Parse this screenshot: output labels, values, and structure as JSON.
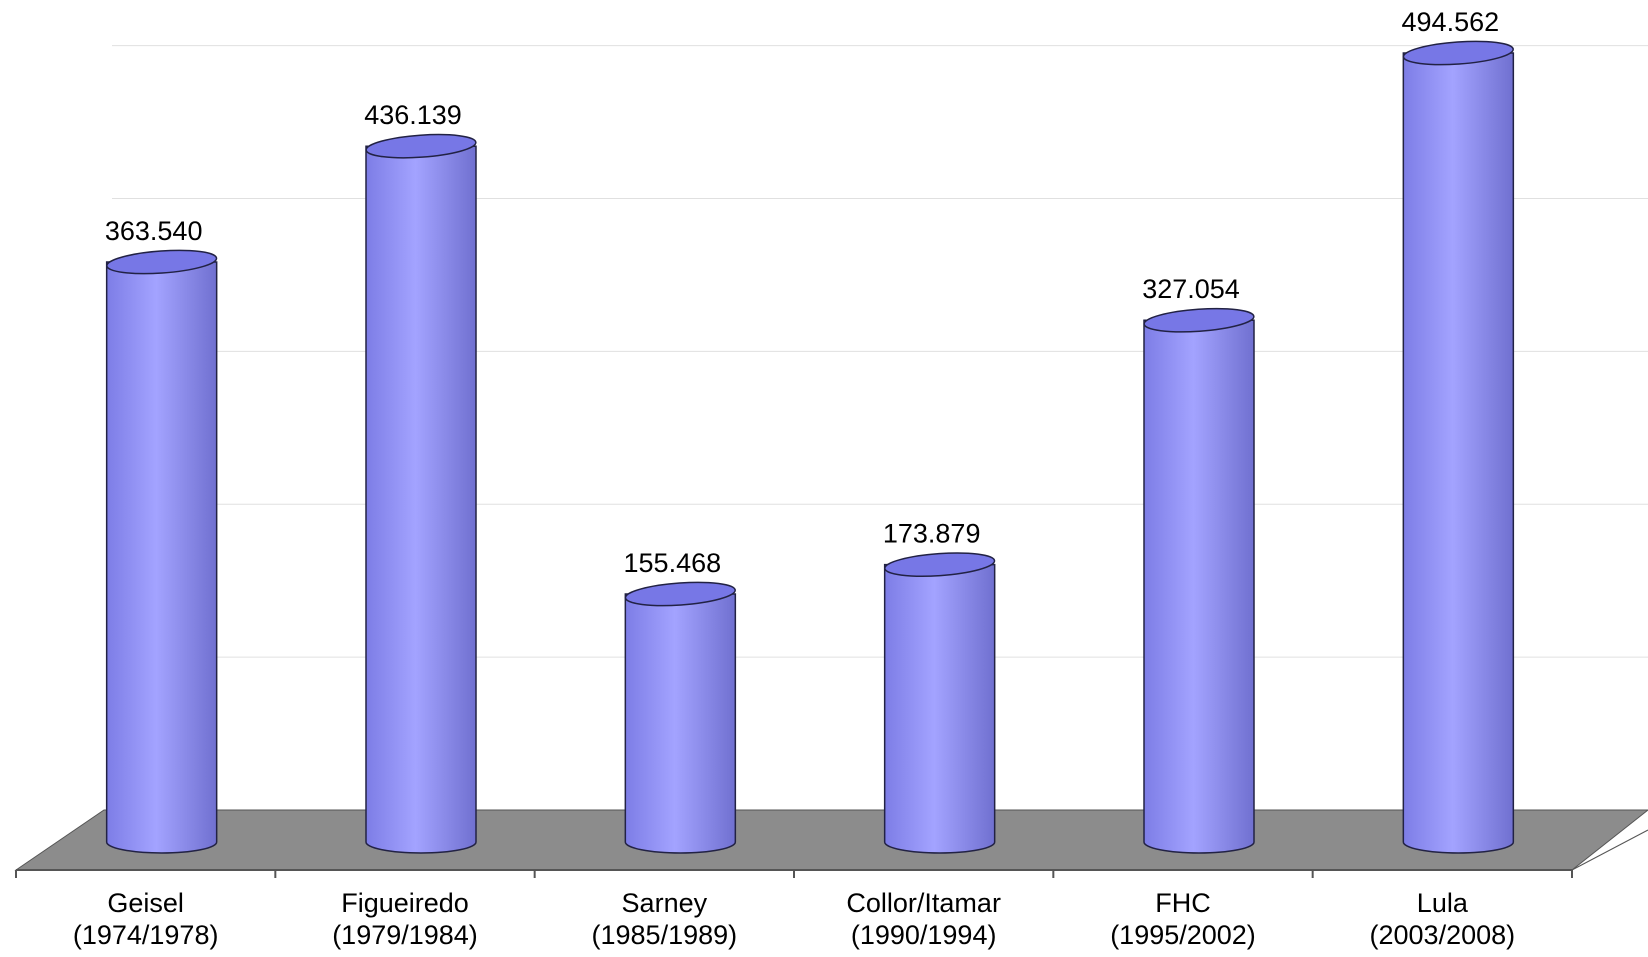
{
  "chart_data": {
    "type": "bar",
    "style": "3d-cylinder",
    "title": "",
    "xlabel": "",
    "ylabel": "",
    "categories": [
      {
        "name": "Geisel",
        "period": "(1974/1978)"
      },
      {
        "name": "Figueiredo",
        "period": "(1979/1984)"
      },
      {
        "name": "Sarney",
        "period": "(1985/1989)"
      },
      {
        "name": "Collor/Itamar",
        "period": "(1990/1994)"
      },
      {
        "name": "FHC",
        "period": "(1995/2002)"
      },
      {
        "name": "Lula",
        "period": "(2003/2008)"
      }
    ],
    "values": [
      363540,
      436139,
      155468,
      173879,
      327054,
      494562
    ],
    "data_labels": [
      "363.540",
      "436.139",
      "155.468",
      "173.879",
      "327.054",
      "494.562"
    ],
    "ylim": [
      0,
      500000
    ],
    "grid": true,
    "legend": "none",
    "colors": {
      "bar": "#9999ff",
      "bar_shade": "#6b6bd6",
      "bar_top": "#7777e6",
      "floor": "#8c8c8c",
      "gridline": "#e0e0e0"
    }
  }
}
